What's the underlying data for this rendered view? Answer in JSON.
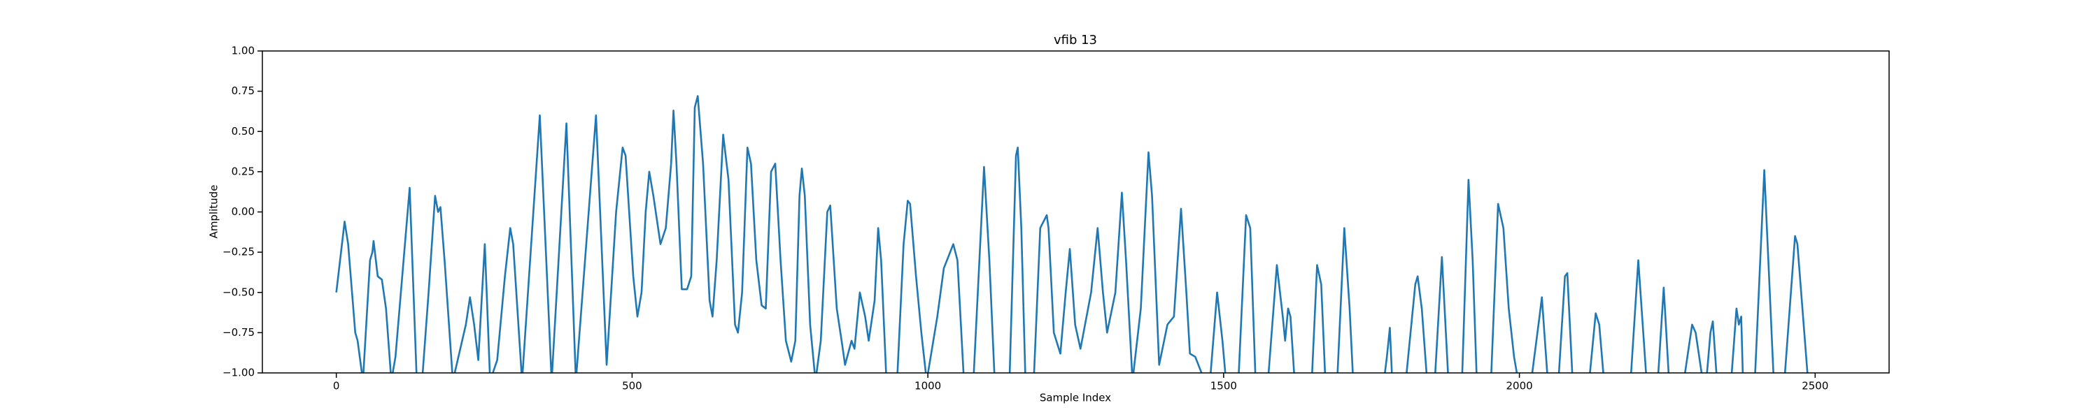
{
  "chart_data": {
    "type": "line",
    "title": "vfib 13",
    "x_label": "Sample Index",
    "y_label": "Amplitude",
    "xlim": [
      -125,
      2625
    ],
    "xticks": [
      0,
      500,
      1000,
      1500,
      2000,
      2500
    ],
    "ylim": [
      -1,
      1
    ],
    "yticks": [
      {
        "value": -1,
        "label": "−1.00"
      },
      {
        "value": -0.75,
        "label": "−0.75"
      },
      {
        "value": -0.5,
        "label": "−0.50"
      },
      {
        "value": -0.25,
        "label": "−0.25"
      },
      {
        "value": 0,
        "label": "0.00"
      },
      {
        "value": 0.25,
        "label": "0.25"
      },
      {
        "value": 0.5,
        "label": "0.50"
      },
      {
        "value": 0.75,
        "label": "0.75"
      },
      {
        "value": 1,
        "label": "1.00"
      }
    ],
    "color": "#1f77b4",
    "x": [
      0,
      14,
      20,
      32,
      36,
      45,
      57,
      61,
      63,
      70,
      77,
      84,
      93,
      100,
      124,
      136,
      145,
      156,
      167,
      172,
      176,
      183,
      197,
      219,
      226,
      233,
      240,
      251,
      260,
      272,
      285,
      294,
      299,
      314,
      344,
      364,
      389,
      405,
      439,
      457,
      473,
      484,
      489,
      502,
      509,
      516,
      523,
      529,
      536,
      548,
      557,
      566,
      570,
      575,
      584,
      593,
      600,
      606,
      611,
      620,
      631,
      636,
      643,
      654,
      663,
      674,
      679,
      686,
      695,
      701,
      710,
      719,
      726,
      735,
      742,
      751,
      760,
      769,
      776,
      783,
      787,
      792,
      801,
      810,
      819,
      830,
      835,
      846,
      855,
      860,
      871,
      876,
      885,
      894,
      900,
      910,
      916,
      921,
      930,
      948,
      959,
      966,
      970,
      980,
      989,
      998,
      1016,
      1027,
      1043,
      1050,
      1061,
      1077,
      1095,
      1104,
      1113,
      1138,
      1149,
      1152,
      1158,
      1165,
      1179,
      1190,
      1201,
      1204,
      1213,
      1224,
      1233,
      1240,
      1249,
      1258,
      1276,
      1287,
      1296,
      1303,
      1317,
      1328,
      1335,
      1346,
      1360,
      1373,
      1379,
      1391,
      1405,
      1416,
      1428,
      1437,
      1443,
      1452,
      1468,
      1477,
      1489,
      1498,
      1504,
      1525,
      1538,
      1545,
      1554,
      1575,
      1590,
      1600,
      1604,
      1609,
      1613,
      1620,
      1649,
      1658,
      1665,
      1672,
      1692,
      1704,
      1713,
      1719,
      1771,
      1776,
      1781,
      1785,
      1808,
      1824,
      1828,
      1835,
      1844,
      1857,
      1869,
      1880,
      1903,
      1914,
      1921,
      1928,
      1952,
      1964,
      1973,
      1982,
      1991,
      1998,
      2020,
      2034,
      2038,
      2048,
      2066,
      2077,
      2081,
      2090,
      2118,
      2129,
      2135,
      2143,
      2188,
      2201,
      2215,
      2234,
      2244,
      2253,
      2278,
      2292,
      2298,
      2310,
      2316,
      2323,
      2327,
      2334,
      2358,
      2367,
      2371,
      2375,
      2378,
      2398,
      2414,
      2430,
      2448,
      2466,
      2470,
      2488,
      2499
    ],
    "values": [
      -0.5,
      -0.06,
      -0.2,
      -0.75,
      -0.8,
      -1.05,
      -0.3,
      -0.25,
      -0.18,
      -0.4,
      -0.42,
      -0.6,
      -1.05,
      -0.9,
      0.15,
      -1.05,
      -1.05,
      -0.5,
      0.1,
      0.0,
      0.03,
      -0.3,
      -1.05,
      -0.7,
      -0.53,
      -0.7,
      -0.92,
      -0.2,
      -1.05,
      -0.92,
      -0.4,
      -0.1,
      -0.2,
      -1.05,
      0.6,
      -1.05,
      0.55,
      -1.05,
      0.6,
      -0.95,
      0.0,
      0.4,
      0.35,
      -0.4,
      -0.65,
      -0.5,
      0.0,
      0.25,
      0.1,
      -0.2,
      -0.1,
      0.3,
      0.63,
      0.3,
      -0.48,
      -0.48,
      -0.4,
      0.65,
      0.72,
      0.3,
      -0.55,
      -0.65,
      -0.3,
      0.48,
      0.2,
      -0.7,
      -0.75,
      -0.5,
      0.4,
      0.3,
      -0.3,
      -0.58,
      -0.6,
      0.25,
      0.3,
      -0.3,
      -0.8,
      -0.93,
      -0.8,
      0.1,
      0.27,
      0.1,
      -0.7,
      -1.05,
      -0.8,
      0.0,
      0.04,
      -0.6,
      -0.82,
      -0.95,
      -0.8,
      -0.85,
      -0.5,
      -0.65,
      -0.8,
      -0.55,
      -0.1,
      -0.3,
      -1.05,
      -1.05,
      -0.2,
      0.07,
      0.05,
      -0.4,
      -0.75,
      -1.05,
      -0.65,
      -0.35,
      -0.2,
      -0.3,
      -1.05,
      -1.05,
      0.28,
      -0.3,
      -1.05,
      -1.05,
      0.35,
      0.4,
      -0.1,
      -1.05,
      -1.05,
      -0.1,
      -0.02,
      -0.1,
      -0.75,
      -0.88,
      -0.5,
      -0.23,
      -0.7,
      -0.85,
      -0.5,
      -0.1,
      -0.5,
      -0.75,
      -0.5,
      0.12,
      -0.3,
      -1.05,
      -0.6,
      0.37,
      0.1,
      -0.95,
      -0.7,
      -0.65,
      0.02,
      -0.5,
      -0.88,
      -0.9,
      -1.05,
      -1.05,
      -0.5,
      -0.8,
      -1.05,
      -1.05,
      -0.02,
      -0.1,
      -1.05,
      -1.05,
      -0.33,
      -0.65,
      -0.8,
      -0.6,
      -0.65,
      -1.05,
      -1.05,
      -0.33,
      -0.45,
      -1.05,
      -1.05,
      -0.1,
      -0.6,
      -1.05,
      -1.05,
      -0.9,
      -0.72,
      -1.05,
      -1.05,
      -0.45,
      -0.4,
      -0.6,
      -1.05,
      -1.05,
      -0.28,
      -1.05,
      -1.05,
      0.2,
      -0.3,
      -1.05,
      -1.05,
      0.05,
      -0.1,
      -0.6,
      -0.9,
      -1.05,
      -1.05,
      -0.65,
      -0.53,
      -1.05,
      -1.05,
      -0.4,
      -0.38,
      -1.05,
      -1.05,
      -0.63,
      -0.7,
      -1.05,
      -1.05,
      -0.3,
      -1.05,
      -1.05,
      -0.47,
      -1.05,
      -1.05,
      -0.7,
      -0.75,
      -1.05,
      -1.05,
      -0.75,
      -0.68,
      -1.05,
      -1.05,
      -0.6,
      -0.7,
      -0.65,
      -1.05,
      -1.05,
      0.26,
      -1.05,
      -1.05,
      -0.15,
      -0.2,
      -1.05,
      -1.05
    ]
  }
}
